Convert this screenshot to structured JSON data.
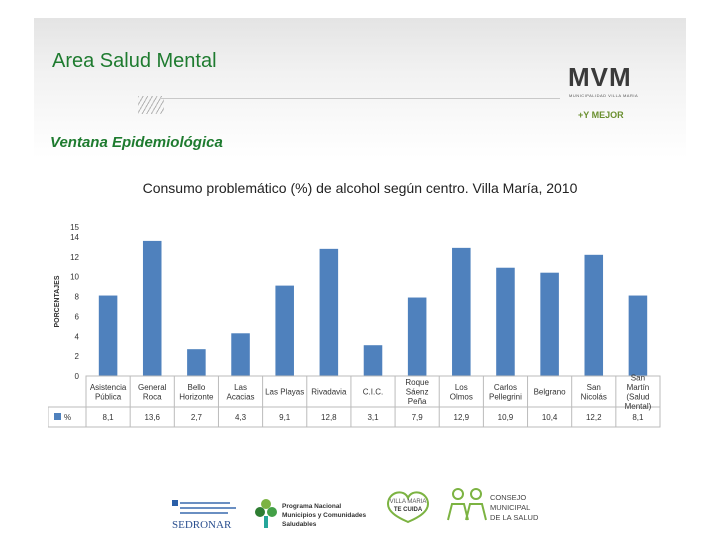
{
  "slide": {
    "title": "Area Salud Mental",
    "subtitle": "Ventana Epidemiológica"
  },
  "logos": {
    "municipal": "MVM",
    "municipal_sub": "MUNICIPALIDAD VILLA MARIA",
    "mejor": "+Y MEJOR",
    "sedronar": "SEDRONAR",
    "programa": [
      "Programa Nacional",
      "Municipios y Comunidades",
      "Saludables"
    ],
    "villa_maria": [
      "VILLA MARIA",
      "TE CUIDA"
    ],
    "consejo": [
      "CONSEJO",
      "MUNICIPAL",
      "DE LA SALUD"
    ]
  },
  "colors": {
    "bar": "#4f81bd",
    "title_green": "#1e7b2f"
  },
  "chart_data": {
    "type": "bar",
    "title": "Consumo problemático (%) de alcohol según centro. Villa María, 2010",
    "ylabel": "PORCENTAJES",
    "ylim": [
      0,
      15
    ],
    "yticks": [
      "0",
      "2",
      "4",
      "6",
      "8",
      "10",
      "12",
      "14",
      "15"
    ],
    "ytick_values": [
      0,
      2,
      4,
      6,
      8,
      10,
      12,
      14,
      15
    ],
    "grid": false,
    "categories": [
      [
        "Asistencia",
        "Pública"
      ],
      [
        "General",
        "Roca"
      ],
      [
        "Bello",
        "Horizonte"
      ],
      [
        "Las",
        "Acacias"
      ],
      [
        "Las Playas"
      ],
      [
        "Rivadavia"
      ],
      [
        "C.I.C."
      ],
      [
        "Roque",
        "Sáenz",
        "Peña"
      ],
      [
        "Los",
        "Olmos"
      ],
      [
        "Carlos",
        "Pellegrini"
      ],
      [
        "Belgrano"
      ],
      [
        "San",
        "Nicolás"
      ],
      [
        "San",
        "Martín",
        "(Salud",
        "Mental)"
      ]
    ],
    "series": [
      {
        "name": "%",
        "values": [
          8.1,
          13.6,
          2.7,
          4.3,
          9.1,
          12.8,
          3.1,
          7.9,
          12.9,
          10.9,
          10.4,
          12.2,
          8.1
        ],
        "labels": [
          "8,1",
          "13,6",
          "2,7",
          "4,3",
          "9,1",
          "12,8",
          "3,1",
          "7,9",
          "12,9",
          "10,9",
          "10,4",
          "12,2",
          "8,1"
        ]
      }
    ]
  }
}
